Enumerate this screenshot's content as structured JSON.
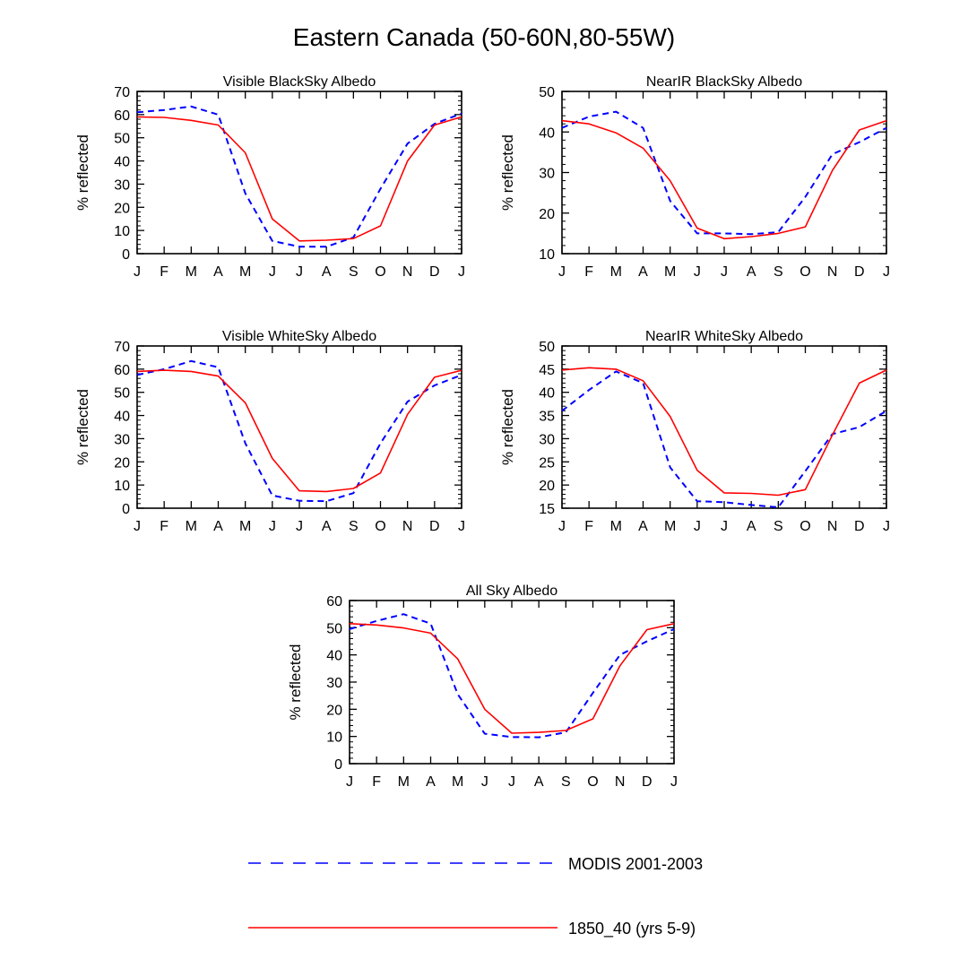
{
  "title": "Eastern Canada (50-60N,80-55W)",
  "colors": {
    "modis": "#0000ff",
    "model": "#ff0000",
    "axis": "#000000"
  },
  "legend": [
    {
      "label": "MODIS 2001-2003",
      "style": "dashed",
      "color": "#0000ff"
    },
    {
      "label": "1850_40 (yrs 5-9)",
      "style": "solid",
      "color": "#ff0000"
    }
  ],
  "chart_data": [
    {
      "type": "line",
      "title": "Visible BlackSky Albedo",
      "ylabel": "% reflected",
      "xlabel": "",
      "categories": [
        "J",
        "F",
        "M",
        "A",
        "M",
        "J",
        "J",
        "A",
        "S",
        "O",
        "N",
        "D",
        "J"
      ],
      "ylim": [
        0,
        70
      ],
      "yticks": [
        0,
        10,
        20,
        30,
        40,
        50,
        60,
        70
      ],
      "series": [
        {
          "name": "MODIS 2001-2003",
          "values": [
            61,
            62,
            63.5,
            60,
            26,
            5.5,
            3,
            3,
            7,
            28,
            47.5,
            56,
            60.5
          ]
        },
        {
          "name": "1850_40 (yrs 5-9)",
          "values": [
            59,
            58.8,
            57.5,
            55.5,
            43.5,
            15,
            5.5,
            5.8,
            6.5,
            12,
            40,
            55.5,
            59
          ]
        }
      ]
    },
    {
      "type": "line",
      "title": "NearIR BlackSky Albedo",
      "ylabel": "% reflected",
      "xlabel": "",
      "categories": [
        "J",
        "F",
        "M",
        "A",
        "M",
        "J",
        "J",
        "A",
        "S",
        "O",
        "N",
        "D",
        "J"
      ],
      "ylim": [
        10,
        50
      ],
      "yticks": [
        10,
        20,
        30,
        40,
        50
      ],
      "series": [
        {
          "name": "MODIS 2001-2003",
          "values": [
            41,
            43.8,
            45,
            41,
            23,
            15,
            15,
            14.8,
            15.3,
            24,
            34.5,
            37.5,
            41
          ]
        },
        {
          "name": "1850_40 (yrs 5-9)",
          "values": [
            42.8,
            42,
            39.8,
            36,
            28,
            16.3,
            13.7,
            14.2,
            15,
            16.6,
            30.5,
            40.5,
            42.8
          ]
        }
      ]
    },
    {
      "type": "line",
      "title": "Visible WhiteSky Albedo",
      "ylabel": "% reflected",
      "xlabel": "",
      "categories": [
        "J",
        "F",
        "M",
        "A",
        "M",
        "J",
        "J",
        "A",
        "S",
        "O",
        "N",
        "D",
        "J"
      ],
      "ylim": [
        0,
        70
      ],
      "yticks": [
        0,
        10,
        20,
        30,
        40,
        50,
        60,
        70
      ],
      "series": [
        {
          "name": "MODIS 2001-2003",
          "values": [
            57.5,
            60,
            63.5,
            60.8,
            28,
            5.5,
            3.2,
            3,
            6.5,
            28,
            46,
            53,
            57.5
          ]
        },
        {
          "name": "1850_40 (yrs 5-9)",
          "values": [
            59,
            59.5,
            59,
            57,
            45.5,
            21.5,
            7.5,
            7.2,
            8.5,
            15.2,
            40.5,
            56.5,
            59.5
          ]
        }
      ]
    },
    {
      "type": "line",
      "title": "NearIR WhiteSky Albedo",
      "ylabel": "% reflected",
      "xlabel": "",
      "categories": [
        "J",
        "F",
        "M",
        "A",
        "M",
        "J",
        "J",
        "A",
        "S",
        "O",
        "N",
        "D",
        "J"
      ],
      "ylim": [
        15,
        50
      ],
      "yticks": [
        15,
        20,
        25,
        30,
        35,
        40,
        45,
        50
      ],
      "series": [
        {
          "name": "MODIS 2001-2003",
          "values": [
            36,
            40.5,
            44.5,
            42,
            23.8,
            16.5,
            16.3,
            15.7,
            15.2,
            23,
            31,
            32.5,
            36
          ]
        },
        {
          "name": "1850_40 (yrs 5-9)",
          "values": [
            44.8,
            45.3,
            45,
            42.5,
            34.8,
            23.2,
            18.3,
            18.2,
            17.8,
            19,
            30.8,
            42,
            44.8
          ]
        }
      ]
    },
    {
      "type": "line",
      "title": "All Sky Albedo",
      "ylabel": "% reflected",
      "xlabel": "",
      "categories": [
        "J",
        "F",
        "M",
        "A",
        "M",
        "J",
        "J",
        "A",
        "S",
        "O",
        "N",
        "D",
        "J"
      ],
      "ylim": [
        0,
        60
      ],
      "yticks": [
        0,
        10,
        20,
        30,
        40,
        50,
        60
      ],
      "series": [
        {
          "name": "MODIS 2001-2003",
          "values": [
            49.5,
            52.5,
            55,
            51.5,
            25.5,
            11,
            9.8,
            9.7,
            11.5,
            26,
            40,
            45,
            49.5
          ]
        },
        {
          "name": "1850_40 (yrs 5-9)",
          "values": [
            51.5,
            51,
            49.9,
            48,
            38.5,
            20,
            11.2,
            11.5,
            12.2,
            16.5,
            36,
            49.3,
            51.5
          ]
        }
      ]
    }
  ]
}
